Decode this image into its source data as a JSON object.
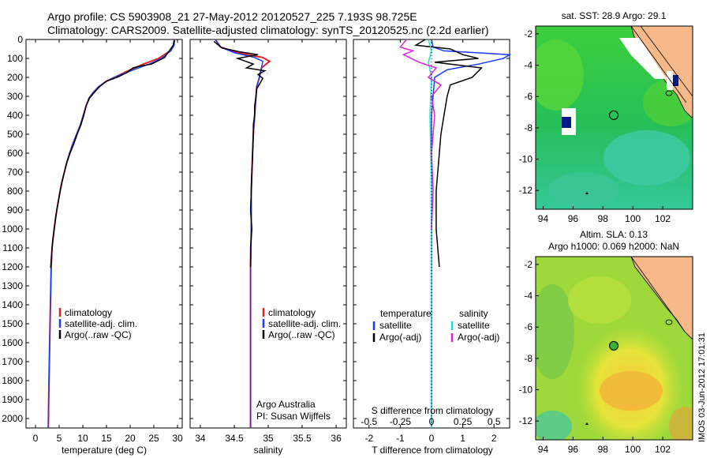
{
  "title_line1": "Argo profile: CS 5903908_21 27-May-2012 20120527_225 7.193S 98.725E",
  "title_line2": "Climatology: CARS2009. Satellite-adjusted climatology: synTS_20120525.nc (2.2d earlier)",
  "colors": {
    "climatology": "#e02020",
    "satellite": "#1a3cff",
    "argo": "#000000",
    "sat_salinity": "#19e0e0",
    "argo_salinity": "#e020e0",
    "land": "#f7b98a"
  },
  "chart_data": [
    {
      "type": "line",
      "panel": "temperature",
      "xlabel": "temperature (deg C)",
      "ylabel": "",
      "xlim": [
        -2,
        31
      ],
      "ylim": [
        2050,
        0
      ],
      "xticks": [
        "0",
        "5",
        "10",
        "15",
        "20",
        "25",
        "30"
      ],
      "yticks": [
        "0",
        "100",
        "200",
        "300",
        "400",
        "500",
        "600",
        "700",
        "800",
        "900",
        "1000",
        "1100",
        "1200",
        "1300",
        "1400",
        "1500",
        "1600",
        "1700",
        "1800",
        "1900",
        "2000"
      ],
      "legend": [
        "climatology",
        "satellite-adj. clim.",
        "Argo(..raw -QC)"
      ],
      "series": [
        {
          "name": "climatology",
          "x": [
            29.3,
            29.2,
            28.5,
            26,
            22.8,
            20,
            17.5,
            15,
            13.3,
            12.2,
            11.3,
            10.7,
            10.1,
            9.5,
            8.7,
            7.9,
            7.2,
            6.6,
            6.1,
            5.6,
            5.2,
            4.85,
            4.5,
            4.2,
            3.95,
            3.7,
            3.5,
            3.32,
            3.15,
            3.0,
            2.85,
            2.7
          ],
          "y": [
            0,
            30,
            60,
            100,
            130,
            160,
            190,
            220,
            250,
            280,
            310,
            350,
            400,
            450,
            500,
            550,
            600,
            650,
            700,
            750,
            800,
            850,
            900,
            950,
            1000,
            1050,
            1100,
            1200,
            1400,
            1600,
            1800,
            2050
          ]
        },
        {
          "name": "satellite-adj. clim.",
          "x": [
            29.4,
            29.3,
            28.6,
            26.6,
            24,
            20.7,
            17.6,
            15,
            13.3,
            12.2,
            11.3,
            10.7,
            10.1,
            9.5,
            8.7,
            7.9,
            7.2,
            6.6,
            6.1,
            5.6,
            5.2,
            4.85,
            4.5,
            4.2,
            3.95,
            3.7,
            3.5,
            3.32,
            3.15,
            3.0,
            2.85,
            2.7
          ],
          "y": [
            0,
            30,
            60,
            100,
            130,
            160,
            190,
            220,
            250,
            280,
            310,
            350,
            400,
            450,
            500,
            550,
            600,
            650,
            700,
            750,
            800,
            850,
            900,
            950,
            1000,
            1050,
            1100,
            1200,
            1400,
            1600,
            1800,
            2050
          ]
        },
        {
          "name": "Argo(..raw -QC)",
          "x": [
            29.3,
            29.1,
            28.4,
            27.8,
            27.3,
            24.5,
            22.2,
            20.6,
            19.3,
            17.2,
            15,
            13.5,
            12.4,
            11.4,
            10.7,
            10.2,
            9.6,
            8.8,
            8.1,
            7.3,
            6.6,
            6.1,
            5.6,
            5.2,
            4.85,
            4.5,
            4.2,
            3.95,
            3.7,
            3.5,
            3.35,
            3.2
          ],
          "y": [
            5,
            30,
            55,
            75,
            95,
            130,
            140,
            150,
            175,
            200,
            220,
            250,
            280,
            310,
            350,
            400,
            450,
            500,
            550,
            600,
            650,
            700,
            750,
            800,
            850,
            900,
            950,
            1000,
            1050,
            1100,
            1150,
            1205
          ]
        }
      ]
    },
    {
      "type": "line",
      "panel": "salinity",
      "xlabel": "salinity",
      "xlim": [
        33.85,
        36.15
      ],
      "ylim": [
        2050,
        0
      ],
      "xticks": [
        "34",
        "34.5",
        "35",
        "35.5",
        "36"
      ],
      "legend": [
        "climatology",
        "satellite-adj. clim.",
        "Argo(..raw -QC)"
      ],
      "annotations": [
        "Argo Australia",
        "PI: Susan Wijffels"
      ],
      "series": [
        {
          "name": "climatology",
          "x": [
            34.22,
            34.3,
            34.55,
            34.92,
            35.02,
            34.9,
            34.87,
            34.83,
            34.82,
            34.8,
            34.78,
            34.77,
            34.76,
            34.75,
            34.75,
            34.75,
            34.74,
            34.74,
            34.74,
            34.74
          ],
          "y": [
            0,
            40,
            70,
            95,
            115,
            150,
            200,
            250,
            300,
            400,
            500,
            600,
            700,
            800,
            900,
            1000,
            1200,
            1500,
            1800,
            2050
          ]
        },
        {
          "name": "satellite-adj. clim.",
          "x": [
            34.22,
            34.3,
            34.5,
            34.8,
            34.92,
            34.9,
            34.87,
            34.83,
            34.82,
            34.8,
            34.78,
            34.77,
            34.76,
            34.75,
            34.75,
            34.75,
            34.74,
            34.74,
            34.74,
            34.74
          ],
          "y": [
            0,
            40,
            70,
            95,
            115,
            150,
            200,
            250,
            300,
            400,
            500,
            600,
            700,
            800,
            900,
            1000,
            1200,
            1500,
            1800,
            2050
          ]
        },
        {
          "name": "Argo(..raw -QC)",
          "x": [
            34.2,
            34.32,
            34.58,
            34.85,
            34.55,
            34.78,
            34.68,
            34.95,
            34.85,
            34.92,
            34.88,
            34.83,
            34.82,
            34.8,
            34.8,
            34.78,
            34.78,
            34.77,
            34.76,
            34.75,
            34.74,
            34.76,
            34.74,
            34.74
          ],
          "y": [
            10,
            45,
            65,
            80,
            100,
            130,
            150,
            165,
            185,
            205,
            230,
            260,
            300,
            350,
            400,
            450,
            500,
            600,
            700,
            800,
            900,
            1000,
            1100,
            1200
          ]
        }
      ]
    },
    {
      "type": "line",
      "panel": "differences",
      "xlabel": "T difference from climatology",
      "xlabel_top": "S difference from climatology",
      "xlim": [
        -2.5,
        2.5
      ],
      "ylim": [
        2050,
        0
      ],
      "xticks": [
        "-2",
        "-1",
        "0",
        "1",
        "2"
      ],
      "xticks_top": [
        "-0.5",
        "-0.25",
        "0",
        "0.25",
        "0.5"
      ],
      "legend_headers": [
        "temperature",
        "salinity"
      ],
      "legend": [
        "satellite",
        "Argo(-adj)",
        "satellite",
        "Argo(-adj)"
      ],
      "series": [
        {
          "name": "satellite",
          "x": [
            0.0,
            0.05,
            0.4,
            2.5,
            2.3,
            1.5,
            0.5,
            0.1,
            0.05,
            0.0,
            0.0,
            0.0,
            0.0
          ],
          "y": [
            0,
            40,
            60,
            80,
            100,
            130,
            160,
            200,
            300,
            400,
            600,
            1200,
            2050
          ]
        },
        {
          "name": "Argo(-adj)",
          "x": [
            -0.2,
            -0.5,
            0.6,
            1.0,
            1.5,
            0.1,
            1.6,
            1.3,
            0.6,
            0.5,
            0.4,
            0.3,
            0.25,
            0.2,
            0.15,
            0.15,
            0.15,
            0.2,
            0.25
          ],
          "y": [
            0,
            30,
            50,
            80,
            100,
            120,
            150,
            200,
            240,
            300,
            400,
            500,
            600,
            700,
            800,
            900,
            1000,
            1100,
            1200
          ]
        },
        {
          "name": "satellite",
          "x": [
            -0.1,
            0.0,
            -0.1,
            0.0,
            -0.05,
            0.0,
            0.0,
            0.0
          ],
          "y": [
            0,
            60,
            120,
            200,
            400,
            800,
            1500,
            2050
          ]
        },
        {
          "name": "Argo(-adj)",
          "x": [
            -0.8,
            -1.0,
            -0.6,
            -0.9,
            -0.4,
            0.15,
            -0.1,
            0.3,
            0.0,
            0.1,
            0.0,
            0.05,
            0.0
          ],
          "y": [
            0,
            40,
            60,
            80,
            120,
            150,
            200,
            240,
            300,
            400,
            600,
            800,
            1000
          ]
        }
      ]
    },
    {
      "type": "heatmap",
      "panel": "sst_map",
      "title": "sat. SST: 28.9 Argo: 29.1",
      "xlim": [
        93.5,
        104
      ],
      "ylim": [
        -13.2,
        -1.5
      ],
      "xticks": [
        "94",
        "96",
        "98",
        "100",
        "102"
      ],
      "yticks": [
        "-2",
        "-4",
        "-6",
        "-8",
        "-10",
        "-12"
      ],
      "marker": {
        "lon": 98.725,
        "lat": -7.193
      }
    },
    {
      "type": "heatmap",
      "panel": "sla_map",
      "title": "Altim. SLA: 0.13",
      "subtitle": "Argo h1000: 0.069 h2000: NaN",
      "xlim": [
        93.5,
        104
      ],
      "ylim": [
        -13.2,
        -1.5
      ],
      "xticks": [
        "94",
        "96",
        "98",
        "100",
        "102"
      ],
      "yticks": [
        "-2",
        "-4",
        "-6",
        "-8",
        "-10",
        "-12"
      ],
      "marker": {
        "lon": 98.725,
        "lat": -7.193
      }
    }
  ],
  "footer": "IMOS 03-Jun-2012 17:01:31"
}
